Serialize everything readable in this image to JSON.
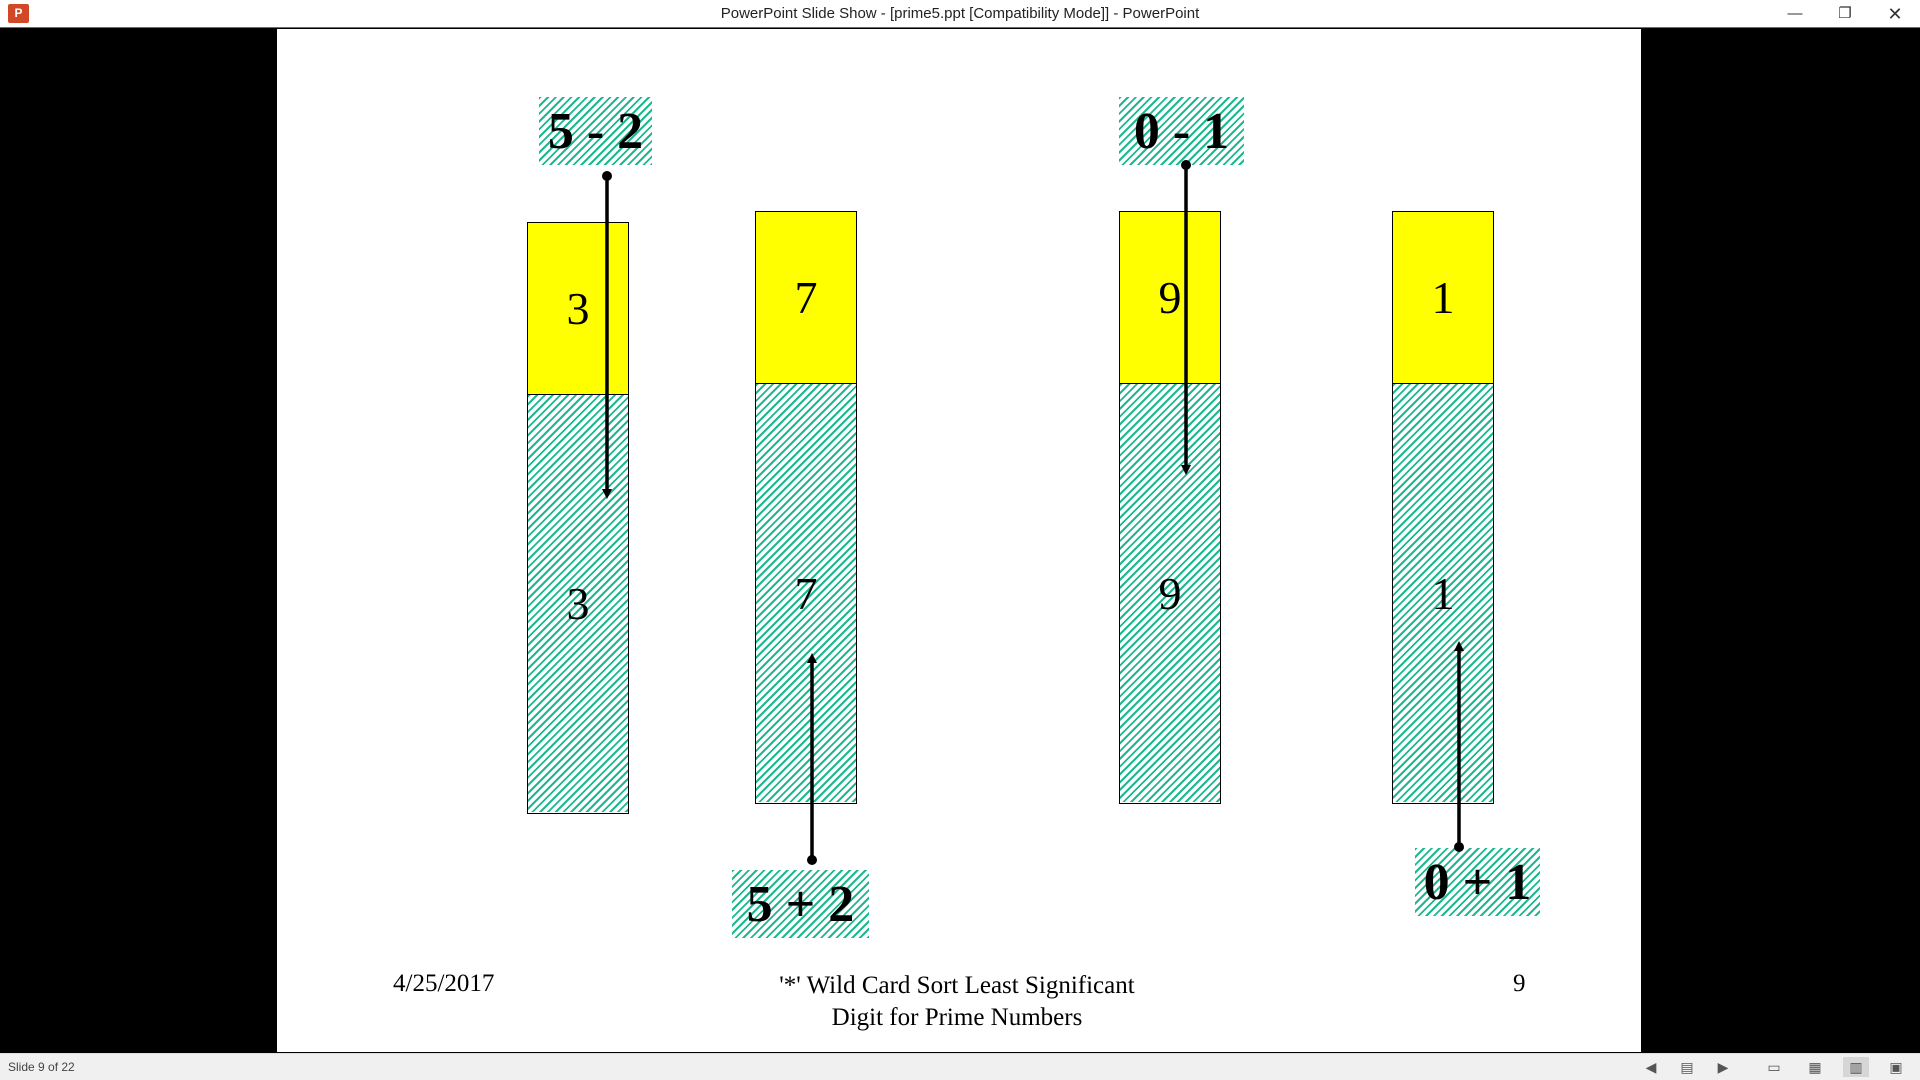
{
  "window": {
    "title": "PowerPoint Slide Show - [prime5.ppt [Compatibility Mode]] - PowerPoint",
    "app_icon": "P",
    "minimize_glyph": "—",
    "restore_glyph": "❐",
    "close_glyph": "✕"
  },
  "slide": {
    "colors": {
      "yellow": "#ffff00",
      "hatch": "#1db88e"
    },
    "columns": [
      {
        "top_digit": "3",
        "bottom_digit": "3"
      },
      {
        "top_digit": "7",
        "bottom_digit": "7"
      },
      {
        "top_digit": "9",
        "bottom_digit": "9"
      },
      {
        "top_digit": "1",
        "bottom_digit": "1"
      }
    ],
    "labels": {
      "five_minus_two": "5 - 2",
      "zero_minus_one": "0 - 1",
      "five_plus_two": "5 + 2",
      "zero_plus_one": "0 + 1"
    },
    "footer": {
      "date": "4/25/2017",
      "title_line1": "'*' Wild Card Sort Least Significant",
      "title_line2": "Digit for Prime Numbers",
      "page": "9"
    }
  },
  "statusbar": {
    "slide_indicator": "Slide 9 of 22",
    "buttons": [
      "previous-slide-icon",
      "slide-menu-icon",
      "next-slide-icon",
      "normal-view-icon",
      "slide-sorter-icon",
      "reading-view-icon",
      "slide-show-icon"
    ]
  }
}
